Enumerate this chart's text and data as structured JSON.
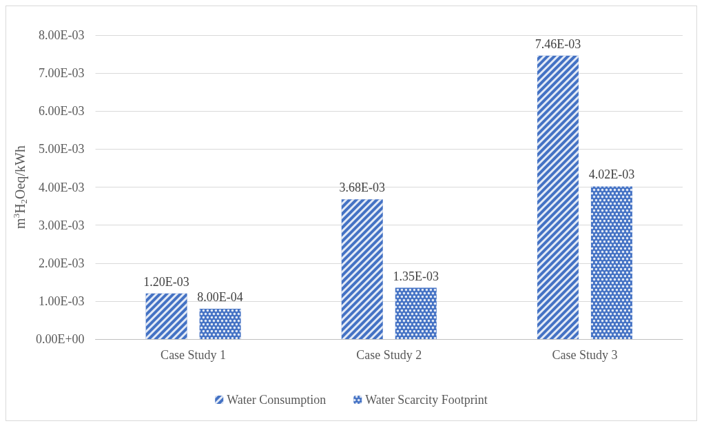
{
  "chart_data": {
    "type": "bar",
    "ylabel": "m$^{3}$H$_{2}$Oeq/kWh",
    "categories": [
      "Case Study 1",
      "Case Study 2",
      "Case Study 3"
    ],
    "series": [
      {
        "name": "Water Consumption",
        "color": "#4472c4",
        "values": [
          0.0012,
          0.00368,
          0.00746
        ],
        "value_labels": [
          "1.20E-03",
          "3.68E-03",
          "7.46E-03"
        ]
      },
      {
        "name": "Water Scarcity Footprint",
        "color": "#4472c4",
        "values": [
          0.0008,
          0.00135,
          0.00402
        ],
        "value_labels": [
          "8.00E-04",
          "1.35E-03",
          "4.02E-03"
        ]
      }
    ],
    "ylim": [
      0,
      0.008
    ],
    "yticks": [
      {
        "value": 0,
        "label": "0.00E+00"
      },
      {
        "value": 0.001,
        "label": "1.00E-03"
      },
      {
        "value": 0.002,
        "label": "2.00E-03"
      },
      {
        "value": 0.003,
        "label": "3.00E-03"
      },
      {
        "value": 0.004,
        "label": "4.00E-03"
      },
      {
        "value": 0.005,
        "label": "5.00E-03"
      },
      {
        "value": 0.006,
        "label": "6.00E-03"
      },
      {
        "value": 0.007,
        "label": "7.00E-03"
      },
      {
        "value": 0.008,
        "label": "8.00E-03"
      }
    ],
    "grid": "y",
    "legend": "bottom"
  }
}
